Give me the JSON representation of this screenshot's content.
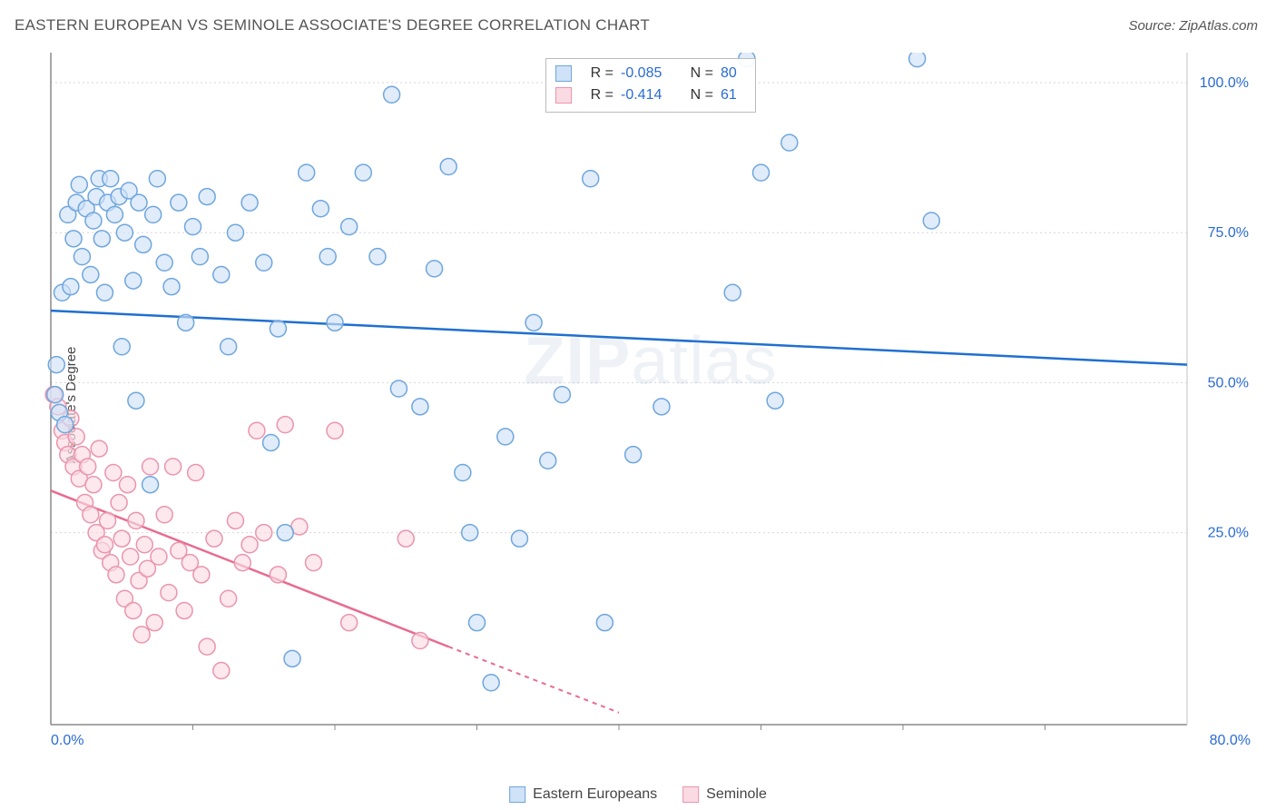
{
  "header": {
    "title": "EASTERN EUROPEAN VS SEMINOLE ASSOCIATE'S DEGREE CORRELATION CHART",
    "source": "Source: ZipAtlas.com"
  },
  "ylabel": "Associate's Degree",
  "watermark": "ZIPatlas",
  "chart": {
    "type": "scatter",
    "xlim": [
      0,
      80
    ],
    "ylim": [
      -7,
      105
    ],
    "x_ticks": [
      0,
      80
    ],
    "y_ticks": [
      25,
      50,
      75,
      100
    ],
    "x_tick_format": "%.1f%%",
    "y_tick_format": "%.1f%%",
    "inner_x_ticks": [
      10,
      20,
      30,
      40,
      50,
      60,
      70
    ],
    "grid_color": "#d6d6d6",
    "axis_color": "#888888",
    "tick_label_color": "#2a6bd4",
    "background_color": "#ffffff",
    "label_fontsize": 15,
    "tick_fontsize": 16,
    "marker_radius": 9,
    "marker_stroke_width": 1.5,
    "trend_width": 2.5
  },
  "series": {
    "eastern": {
      "label": "Eastern Europeans",
      "fill": "#cfe2f7",
      "stroke": "#6fa6dd",
      "line_color": "#1f6fd0",
      "R": "-0.085",
      "N": "80",
      "trend": {
        "x1": 0,
        "y1": 62,
        "x2": 80,
        "y2": 53
      },
      "points": [
        [
          0.3,
          48
        ],
        [
          0.4,
          53
        ],
        [
          0.6,
          45
        ],
        [
          0.8,
          65
        ],
        [
          1.0,
          43
        ],
        [
          1.2,
          78
        ],
        [
          1.4,
          66
        ],
        [
          1.6,
          74
        ],
        [
          1.8,
          80
        ],
        [
          2.0,
          83
        ],
        [
          2.2,
          71
        ],
        [
          2.5,
          79
        ],
        [
          2.8,
          68
        ],
        [
          3.0,
          77
        ],
        [
          3.2,
          81
        ],
        [
          3.4,
          84
        ],
        [
          3.6,
          74
        ],
        [
          3.8,
          65
        ],
        [
          4.0,
          80
        ],
        [
          4.2,
          84
        ],
        [
          4.5,
          78
        ],
        [
          4.8,
          81
        ],
        [
          5.0,
          56
        ],
        [
          5.2,
          75
        ],
        [
          5.5,
          82
        ],
        [
          5.8,
          67
        ],
        [
          6,
          47
        ],
        [
          6.2,
          80
        ],
        [
          6.5,
          73
        ],
        [
          7,
          33
        ],
        [
          7.2,
          78
        ],
        [
          7.5,
          84
        ],
        [
          8,
          70
        ],
        [
          8.5,
          66
        ],
        [
          9,
          80
        ],
        [
          9.5,
          60
        ],
        [
          10,
          76
        ],
        [
          10.5,
          71
        ],
        [
          11,
          81
        ],
        [
          12,
          68
        ],
        [
          12.5,
          56
        ],
        [
          13,
          75
        ],
        [
          14,
          80
        ],
        [
          15,
          70
        ],
        [
          15.5,
          40
        ],
        [
          16,
          59
        ],
        [
          16.5,
          25
        ],
        [
          17,
          4
        ],
        [
          18,
          85
        ],
        [
          19,
          79
        ],
        [
          19.5,
          71
        ],
        [
          20,
          60
        ],
        [
          21,
          76
        ],
        [
          22,
          85
        ],
        [
          23,
          71
        ],
        [
          24,
          98
        ],
        [
          24.5,
          49
        ],
        [
          26,
          46
        ],
        [
          27,
          69
        ],
        [
          28,
          86
        ],
        [
          29,
          35
        ],
        [
          29.5,
          25
        ],
        [
          30,
          10
        ],
        [
          31,
          0
        ],
        [
          32,
          41
        ],
        [
          33,
          24
        ],
        [
          34,
          60
        ],
        [
          35,
          37
        ],
        [
          36,
          48
        ],
        [
          38,
          84
        ],
        [
          39,
          10
        ],
        [
          41,
          38
        ],
        [
          43,
          46
        ],
        [
          48,
          65
        ],
        [
          49,
          104
        ],
        [
          50,
          85
        ],
        [
          51,
          47
        ],
        [
          52,
          90
        ],
        [
          61,
          104
        ],
        [
          62,
          77
        ]
      ]
    },
    "seminole": {
      "label": "Seminole",
      "fill": "#fbdbe3",
      "stroke": "#ea94ad",
      "line_color": "#e86b8f",
      "R": "-0.414",
      "N": "61",
      "trend_solid": {
        "x1": 0,
        "y1": 32,
        "x2": 28,
        "y2": 6
      },
      "trend_dash": {
        "x1": 28,
        "y1": 6,
        "x2": 40,
        "y2": -5
      },
      "points": [
        [
          0.2,
          48
        ],
        [
          0.5,
          46
        ],
        [
          0.8,
          42
        ],
        [
          1.0,
          40
        ],
        [
          1.2,
          38
        ],
        [
          1.4,
          44
        ],
        [
          1.6,
          36
        ],
        [
          1.8,
          41
        ],
        [
          2.0,
          34
        ],
        [
          2.2,
          38
        ],
        [
          2.4,
          30
        ],
        [
          2.6,
          36
        ],
        [
          2.8,
          28
        ],
        [
          3.0,
          33
        ],
        [
          3.2,
          25
        ],
        [
          3.4,
          39
        ],
        [
          3.6,
          22
        ],
        [
          3.8,
          23
        ],
        [
          4.0,
          27
        ],
        [
          4.2,
          20
        ],
        [
          4.4,
          35
        ],
        [
          4.6,
          18
        ],
        [
          4.8,
          30
        ],
        [
          5.0,
          24
        ],
        [
          5.2,
          14
        ],
        [
          5.4,
          33
        ],
        [
          5.6,
          21
        ],
        [
          5.8,
          12
        ],
        [
          6.0,
          27
        ],
        [
          6.2,
          17
        ],
        [
          6.4,
          8
        ],
        [
          6.6,
          23
        ],
        [
          6.8,
          19
        ],
        [
          7.0,
          36
        ],
        [
          7.3,
          10
        ],
        [
          7.6,
          21
        ],
        [
          8.0,
          28
        ],
        [
          8.3,
          15
        ],
        [
          8.6,
          36
        ],
        [
          9.0,
          22
        ],
        [
          9.4,
          12
        ],
        [
          9.8,
          20
        ],
        [
          10.2,
          35
        ],
        [
          10.6,
          18
        ],
        [
          11.0,
          6
        ],
        [
          11.5,
          24
        ],
        [
          12.0,
          2
        ],
        [
          12.5,
          14
        ],
        [
          13.0,
          27
        ],
        [
          13.5,
          20
        ],
        [
          14.0,
          23
        ],
        [
          14.5,
          42
        ],
        [
          15.0,
          25
        ],
        [
          16.0,
          18
        ],
        [
          16.5,
          43
        ],
        [
          17.5,
          26
        ],
        [
          18.5,
          20
        ],
        [
          20.0,
          42
        ],
        [
          21.0,
          10
        ],
        [
          25.0,
          24
        ],
        [
          26.0,
          7
        ]
      ]
    }
  },
  "legend": {
    "stat_rows": [
      {
        "swatch": "eastern",
        "r_label": "R =",
        "r_val": "-0.085",
        "n_label": "N =",
        "n_val": "80"
      },
      {
        "swatch": "seminole",
        "r_label": "R =",
        "r_val": "-0.414",
        "n_label": "N =",
        "n_val": "61"
      }
    ]
  }
}
